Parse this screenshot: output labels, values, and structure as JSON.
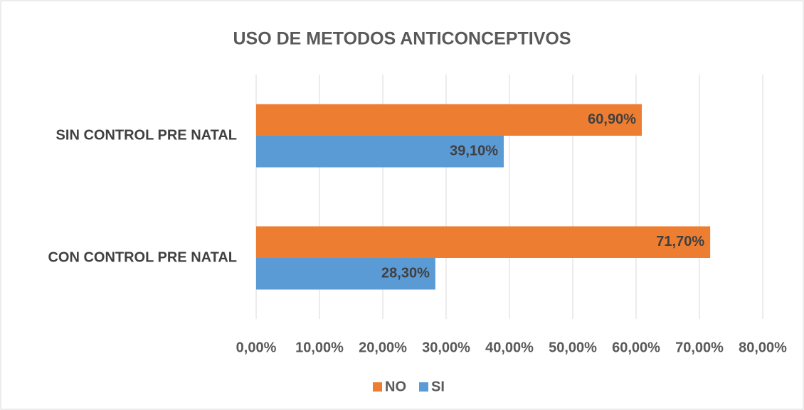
{
  "chart_data": {
    "type": "bar",
    "orientation": "horizontal",
    "title": "USO DE METODOS ANTICONCEPTIVOS",
    "categories": [
      "SIN CONTROL PRE NATAL",
      "CON CONTROL PRE NATAL"
    ],
    "series": [
      {
        "name": "NO",
        "color": "#ed7d31",
        "values": [
          60.9,
          71.7
        ],
        "value_labels": [
          "60,90%",
          "71,70%"
        ]
      },
      {
        "name": "SI",
        "color": "#5b9bd5",
        "values": [
          39.1,
          28.3
        ],
        "value_labels": [
          "39,10%",
          "28,30%"
        ]
      }
    ],
    "xlim": [
      0,
      80
    ],
    "xticks": [
      {
        "value": 0,
        "label": "0,00%"
      },
      {
        "value": 10,
        "label": "10,00%"
      },
      {
        "value": 20,
        "label": "20,00%"
      },
      {
        "value": 30,
        "label": "30,00%"
      },
      {
        "value": 40,
        "label": "40,00%"
      },
      {
        "value": 50,
        "label": "50,00%"
      },
      {
        "value": 60,
        "label": "60,00%"
      },
      {
        "value": 70,
        "label": "70,00%"
      },
      {
        "value": 80,
        "label": "80,00%"
      }
    ],
    "grid": true,
    "legend": "bottom"
  }
}
